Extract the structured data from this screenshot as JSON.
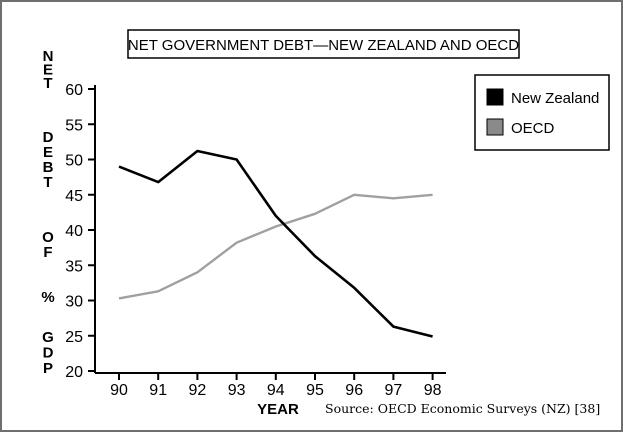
{
  "chart_data": {
    "type": "line",
    "title": "NET GOVERNMENT DEBT—NEW ZEALAND AND OECD",
    "xlabel": "YEAR",
    "ylabel": "NET DEBT OF % GDP",
    "ylabel_words": [
      "NET",
      "DEBT",
      "OF",
      "%",
      "GDP"
    ],
    "source": "Source: OECD Economic Surveys (NZ) [38]",
    "x": [
      "90",
      "91",
      "92",
      "93",
      "94",
      "95",
      "96",
      "97",
      "98"
    ],
    "y_ticks": [
      "60",
      "55",
      "50",
      "45",
      "40",
      "35",
      "30",
      "25",
      "20"
    ],
    "ylim": [
      20,
      60
    ],
    "grid": false,
    "legend_position": "top-right",
    "series": [
      {
        "name": "New Zealand",
        "color": "#000000",
        "values": [
          49,
          46.8,
          51.2,
          50,
          42,
          36.3,
          31.8,
          26.3,
          24.9
        ]
      },
      {
        "name": "OECD",
        "color": "#a0a0a0",
        "values": [
          30.3,
          31.3,
          34,
          38.2,
          40.5,
          42.3,
          45,
          44.5,
          45
        ]
      }
    ]
  }
}
